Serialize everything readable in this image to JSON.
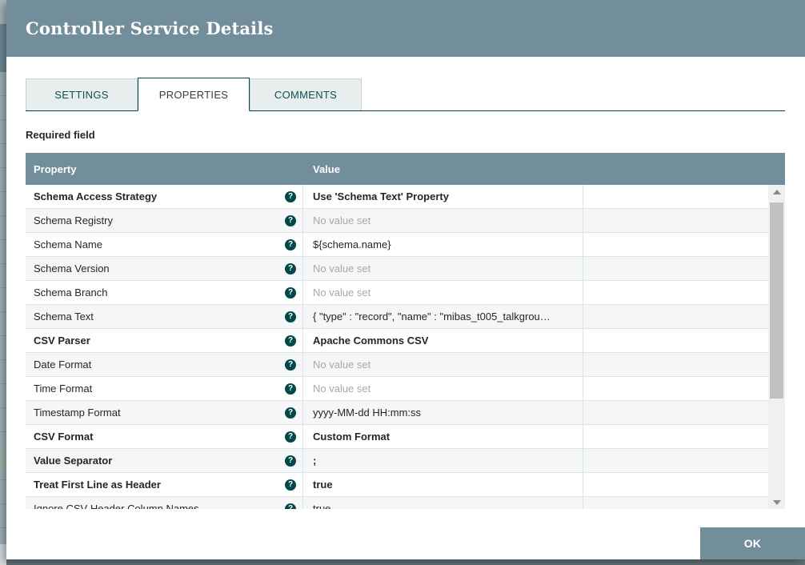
{
  "dialog": {
    "title": "Controller Service Details",
    "ok_label": "OK"
  },
  "tabs": [
    {
      "label": "SETTINGS"
    },
    {
      "label": "PROPERTIES"
    },
    {
      "label": "COMMENTS"
    }
  ],
  "required_field_label": "Required field",
  "table": {
    "columns": [
      "Property",
      "Value"
    ],
    "unset_text": "No value set",
    "rows": [
      {
        "name": "Schema Access Strategy",
        "value": "Use 'Schema Text' Property",
        "name_bold": true,
        "value_bold": true
      },
      {
        "name": "Schema Registry",
        "value": "No value set",
        "unset": true
      },
      {
        "name": "Schema Name",
        "value": "${schema.name}"
      },
      {
        "name": "Schema Version",
        "value": "No value set",
        "unset": true
      },
      {
        "name": "Schema Branch",
        "value": "No value set",
        "unset": true
      },
      {
        "name": "Schema Text",
        "value": "{ \"type\" : \"record\", \"name\" : \"mibas_t005_talkgrou…"
      },
      {
        "name": "CSV Parser",
        "value": "Apache Commons CSV",
        "name_bold": true,
        "value_bold": true
      },
      {
        "name": "Date Format",
        "value": "No value set",
        "unset": true
      },
      {
        "name": "Time Format",
        "value": "No value set",
        "unset": true
      },
      {
        "name": "Timestamp Format",
        "value": "yyyy-MM-dd HH:mm:ss"
      },
      {
        "name": "CSV Format",
        "value": "Custom Format",
        "name_bold": true,
        "value_bold": true
      },
      {
        "name": "Value Separator",
        "value": ";",
        "name_bold": true,
        "value_bold": true
      },
      {
        "name": "Treat First Line as Header",
        "value": "true",
        "name_bold": true,
        "value_bold": true
      },
      {
        "name": "Ignore CSV Header Column Names",
        "value": "true"
      }
    ]
  },
  "icons": {
    "help": "?"
  },
  "colors": {
    "header_bg": "#728e9b",
    "accent_teal": "#004849",
    "row_alt_bg": "#f5f6f7",
    "unset_text": "#a8a8a8"
  }
}
